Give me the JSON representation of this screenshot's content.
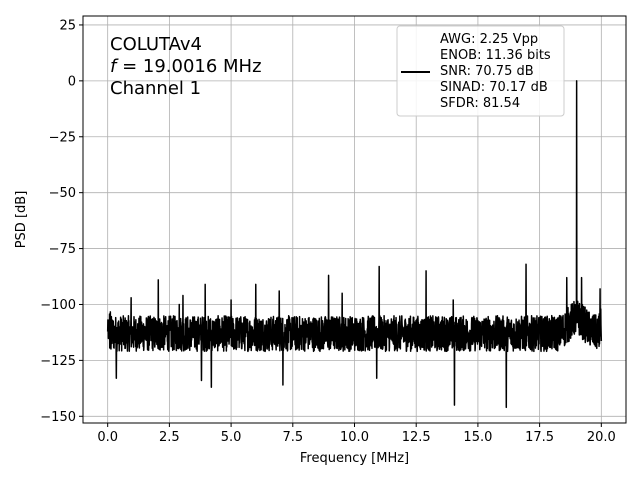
{
  "chart_data": {
    "type": "line",
    "title": "",
    "xlabel": "Frequency [MHz]",
    "ylabel": "PSD [dB]",
    "xlim": [
      -1.0,
      21.0
    ],
    "ylim": [
      -153,
      29
    ],
    "xticks": [
      0.0,
      2.5,
      5.0,
      7.5,
      10.0,
      12.5,
      15.0,
      17.5,
      20.0
    ],
    "xtick_labels": [
      "0.0",
      "2.5",
      "5.0",
      "7.5",
      "10.0",
      "12.5",
      "15.0",
      "17.5",
      "20.0"
    ],
    "yticks": [
      25,
      0,
      -25,
      -50,
      -75,
      -100,
      -125,
      -150
    ],
    "ytick_labels": [
      "25",
      "0",
      "−25",
      "−50",
      "−75",
      "−100",
      "−125",
      "−150"
    ],
    "grid": true,
    "line_color": "#000000",
    "annotation": {
      "line1": "COLUTAv4",
      "line2_italic": "f",
      "line2_rest": " = 19.0016 MHz",
      "line3": "Channel 1"
    },
    "legend": {
      "position": "upper-right",
      "lines": [
        "AWG: 2.25 Vpp",
        "ENOB: 11.36 bits",
        "SNR: 70.75 dB",
        "SINAD: 70.17 dB",
        "SFDR: 81.54"
      ]
    },
    "series": [
      {
        "noise_floor_db": -113,
        "noise_band_db": [
          -121,
          -105
        ],
        "min_dips_db": [
          {
            "x": 0.35,
            "y": -133
          },
          {
            "x": 3.8,
            "y": -134
          },
          {
            "x": 4.2,
            "y": -137
          },
          {
            "x": 7.1,
            "y": -136
          },
          {
            "x": 10.9,
            "y": -133
          },
          {
            "x": 14.05,
            "y": -145
          },
          {
            "x": 16.15,
            "y": -146
          },
          {
            "x": 19.95,
            "y": -134
          }
        ],
        "peaks": [
          {
            "x": 0.95,
            "y": -97
          },
          {
            "x": 2.05,
            "y": -89
          },
          {
            "x": 2.9,
            "y": -100
          },
          {
            "x": 3.05,
            "y": -96
          },
          {
            "x": 3.95,
            "y": -91
          },
          {
            "x": 5.0,
            "y": -98
          },
          {
            "x": 6.0,
            "y": -91
          },
          {
            "x": 6.95,
            "y": -94
          },
          {
            "x": 8.95,
            "y": -87
          },
          {
            "x": 9.5,
            "y": -95
          },
          {
            "x": 11.0,
            "y": -83
          },
          {
            "x": 12.9,
            "y": -85
          },
          {
            "x": 14.0,
            "y": -98
          },
          {
            "x": 16.95,
            "y": -82
          },
          {
            "x": 18.6,
            "y": -88
          },
          {
            "x": 19.0016,
            "y": 0
          },
          {
            "x": 19.2,
            "y": -88
          },
          {
            "x": 19.95,
            "y": -93
          }
        ]
      }
    ]
  }
}
